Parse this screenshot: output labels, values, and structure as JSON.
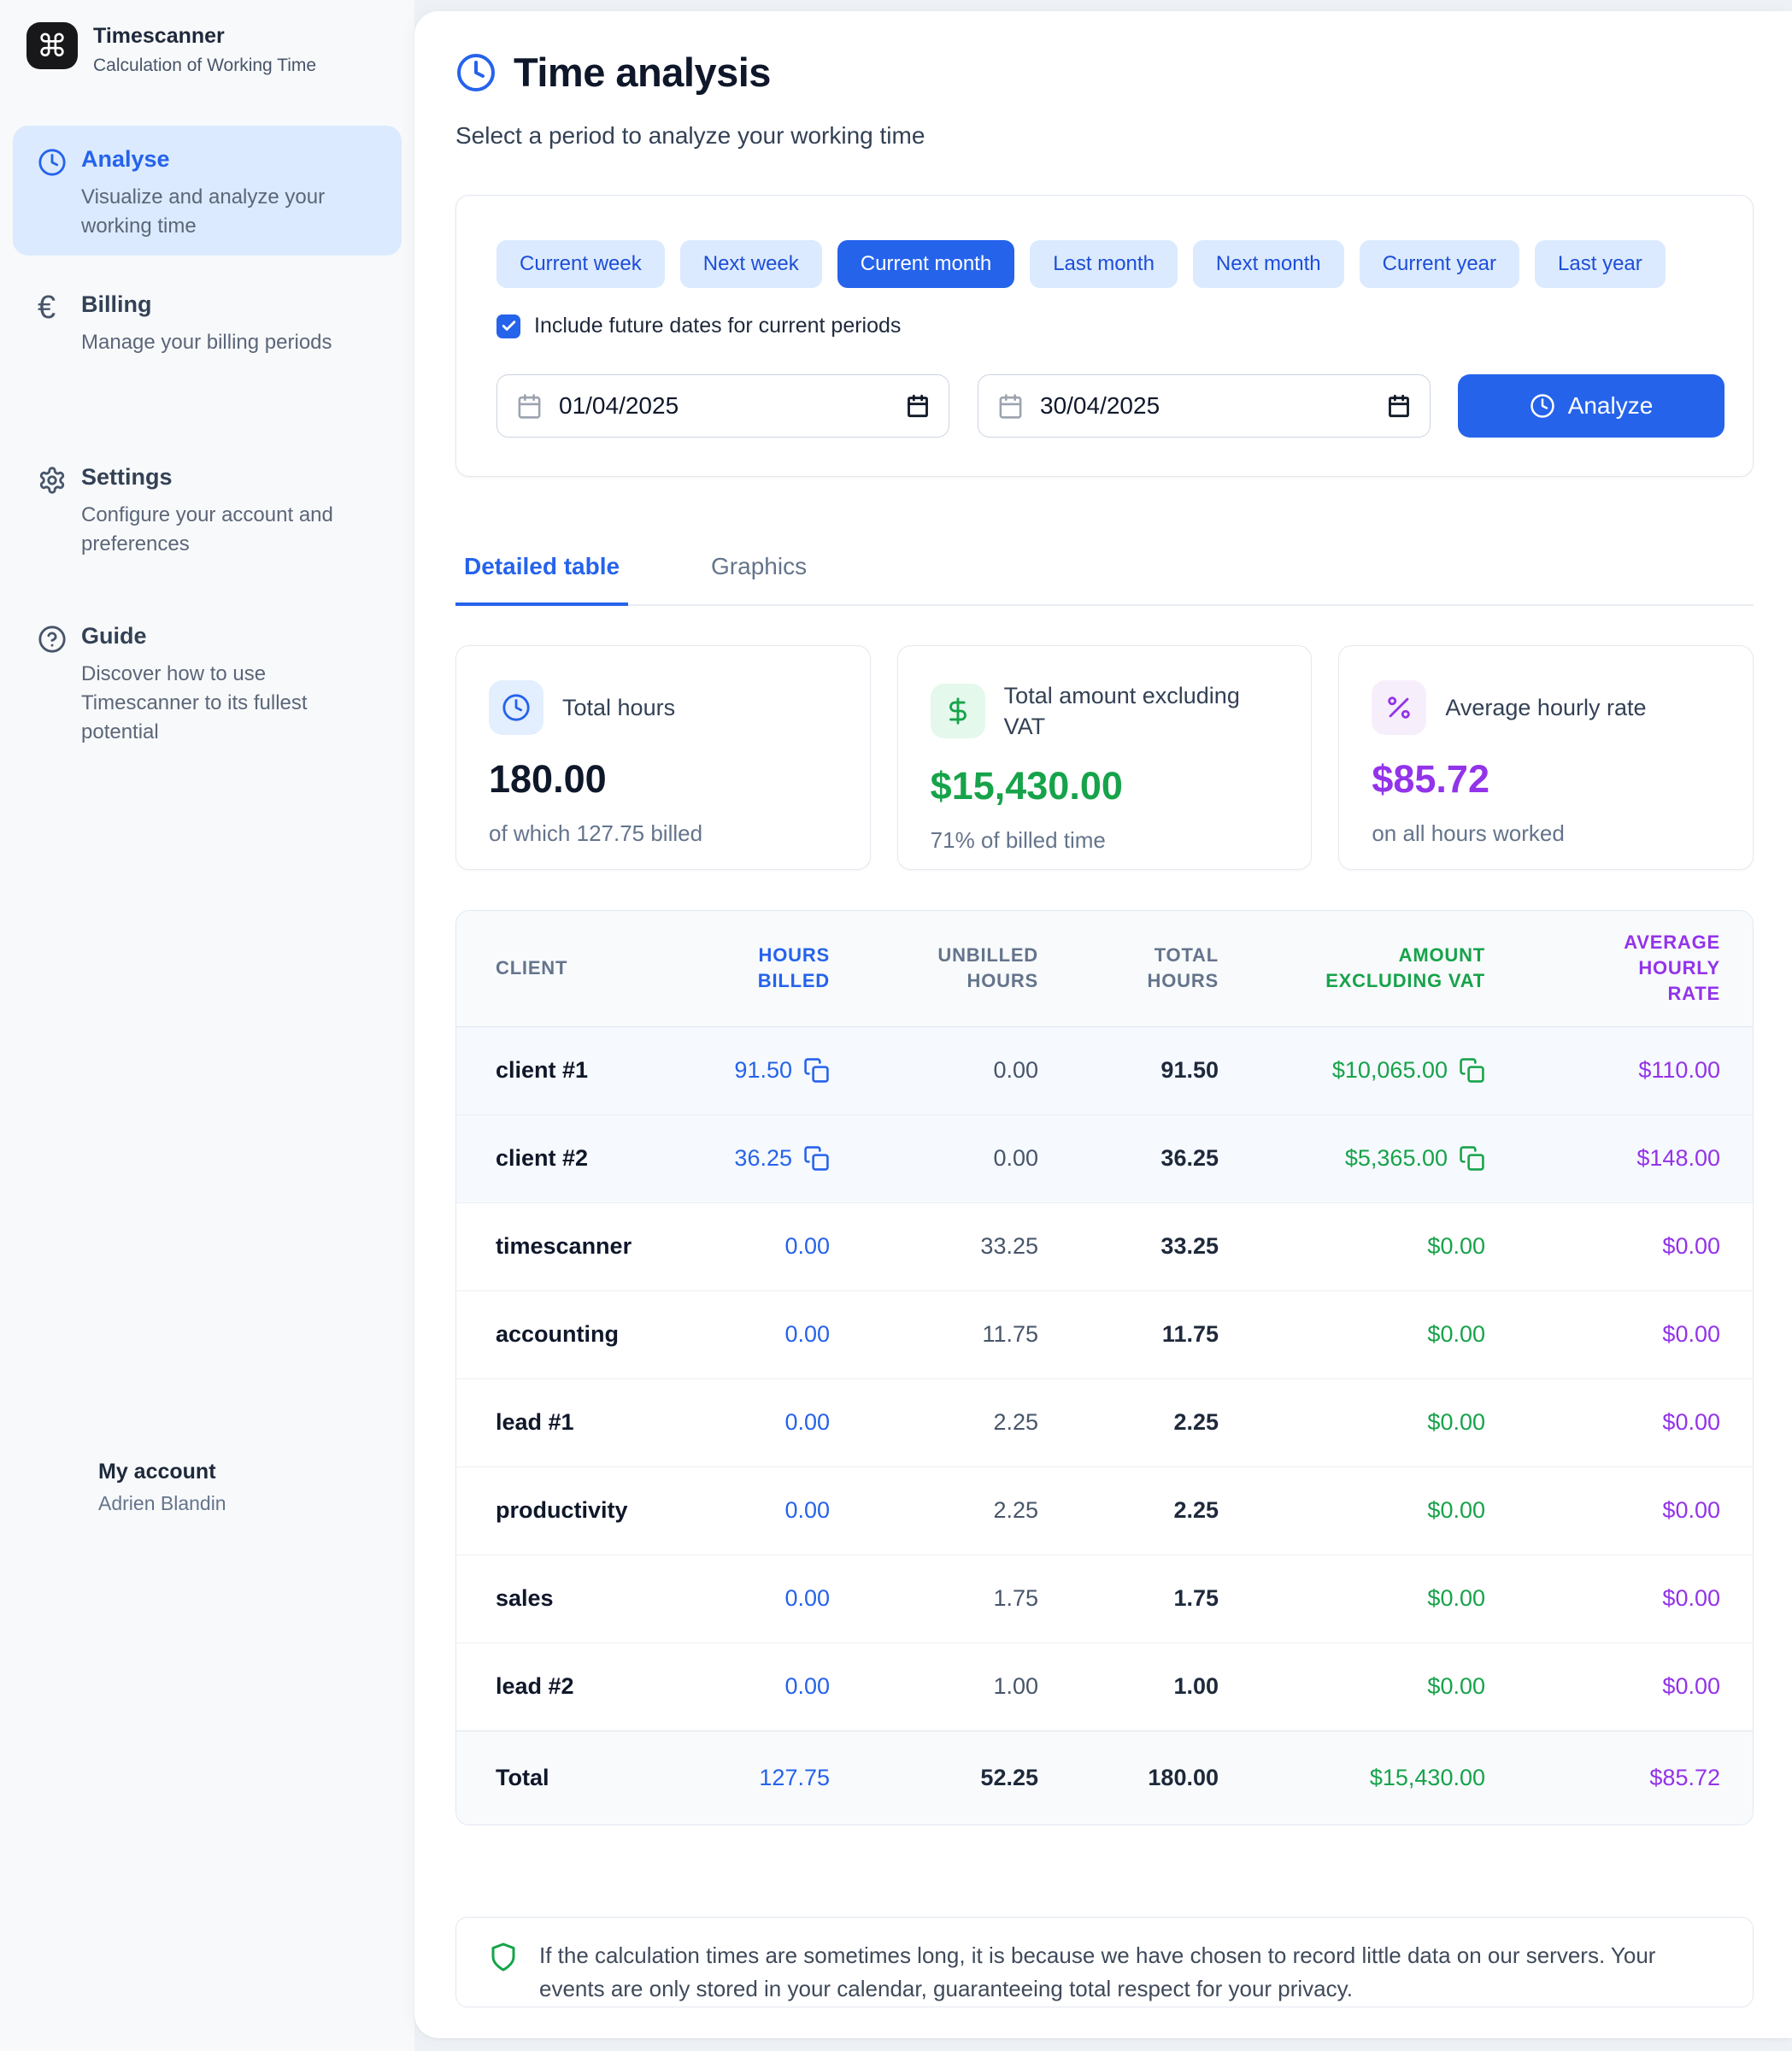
{
  "app": {
    "name": "Timescanner",
    "tagline": "Calculation of Working Time"
  },
  "sidebar": {
    "items": [
      {
        "label": "Analyse",
        "description": "Visualize and analyze your working time",
        "icon": "clock-icon",
        "active": true
      },
      {
        "label": "Billing",
        "description": "Manage your billing periods",
        "icon": "euro-icon",
        "active": false
      },
      {
        "label": "Settings",
        "description": "Configure your account and preferences",
        "icon": "gear-icon",
        "active": false
      },
      {
        "label": "Guide",
        "description": "Discover how to use Timescanner to its fullest potential",
        "icon": "question-icon",
        "active": false
      }
    ],
    "account": {
      "title": "My account",
      "user": "Adrien Blandin"
    }
  },
  "header": {
    "title": "Time analysis",
    "subtitle": "Select a period to analyze your working time"
  },
  "filters": {
    "periods": [
      {
        "label": "Current week",
        "active": false
      },
      {
        "label": "Next week",
        "active": false
      },
      {
        "label": "Current month",
        "active": true
      },
      {
        "label": "Last month",
        "active": false
      },
      {
        "label": "Next month",
        "active": false
      },
      {
        "label": "Current year",
        "active": false
      },
      {
        "label": "Last year",
        "active": false
      }
    ],
    "checkbox_label": "Include future dates for current periods",
    "checkbox_checked": true,
    "date_from": "01/04/2025",
    "date_to": "30/04/2025",
    "analyze_label": "Analyze"
  },
  "tabs": [
    {
      "label": "Detailed table",
      "active": true
    },
    {
      "label": "Graphics",
      "active": false
    }
  ],
  "summary_cards": [
    {
      "label": "Total hours",
      "value": "180.00",
      "sub": "of which 127.75 billed",
      "icon": "clock-icon",
      "accent": "#2563eb"
    },
    {
      "label": "Total amount excluding VAT",
      "value": "$15,430.00",
      "sub": "71% of billed time",
      "icon": "dollar-icon",
      "accent": "#16a34a"
    },
    {
      "label": "Average hourly rate",
      "value": "$85.72",
      "sub": "on all hours worked",
      "icon": "percent-icon",
      "accent": "#9333ea"
    }
  ],
  "table": {
    "columns": [
      "Client",
      "Hours billed",
      "Unbilled hours",
      "Total hours",
      "Amount excluding VAT",
      "Average hourly rate"
    ],
    "rows": [
      {
        "client": "client #1",
        "hours_billed": "91.50",
        "copy_hours": true,
        "unbilled_hours": "0.00",
        "total_hours": "91.50",
        "amount": "$10,065.00",
        "copy_amount": true,
        "rate": "$110.00",
        "highlight": true
      },
      {
        "client": "client #2",
        "hours_billed": "36.25",
        "copy_hours": true,
        "unbilled_hours": "0.00",
        "total_hours": "36.25",
        "amount": "$5,365.00",
        "copy_amount": true,
        "rate": "$148.00",
        "highlight": true
      },
      {
        "client": "timescanner",
        "hours_billed": "0.00",
        "copy_hours": false,
        "unbilled_hours": "33.25",
        "total_hours": "33.25",
        "amount": "$0.00",
        "copy_amount": false,
        "rate": "$0.00",
        "highlight": false
      },
      {
        "client": "accounting",
        "hours_billed": "0.00",
        "copy_hours": false,
        "unbilled_hours": "11.75",
        "total_hours": "11.75",
        "amount": "$0.00",
        "copy_amount": false,
        "rate": "$0.00",
        "highlight": false
      },
      {
        "client": "lead #1",
        "hours_billed": "0.00",
        "copy_hours": false,
        "unbilled_hours": "2.25",
        "total_hours": "2.25",
        "amount": "$0.00",
        "copy_amount": false,
        "rate": "$0.00",
        "highlight": false
      },
      {
        "client": "productivity",
        "hours_billed": "0.00",
        "copy_hours": false,
        "unbilled_hours": "2.25",
        "total_hours": "2.25",
        "amount": "$0.00",
        "copy_amount": false,
        "rate": "$0.00",
        "highlight": false
      },
      {
        "client": "sales",
        "hours_billed": "0.00",
        "copy_hours": false,
        "unbilled_hours": "1.75",
        "total_hours": "1.75",
        "amount": "$0.00",
        "copy_amount": false,
        "rate": "$0.00",
        "highlight": false
      },
      {
        "client": "lead #2",
        "hours_billed": "0.00",
        "copy_hours": false,
        "unbilled_hours": "1.00",
        "total_hours": "1.00",
        "amount": "$0.00",
        "copy_amount": false,
        "rate": "$0.00",
        "highlight": false
      }
    ],
    "total": {
      "label": "Total",
      "hours_billed": "127.75",
      "unbilled_hours": "52.25",
      "total_hours": "180.00",
      "amount": "$15,430.00",
      "rate": "$85.72"
    }
  },
  "privacy_note": "If the calculation times are sometimes long, it is because we have chosen to record little data on our servers. Your events are only stored in your calendar, guaranteeing total respect for your privacy.",
  "colors": {
    "accent_blue": "#2563eb",
    "green": "#16a34a",
    "purple": "#9333ea",
    "light_blue": "#dbeafe"
  }
}
